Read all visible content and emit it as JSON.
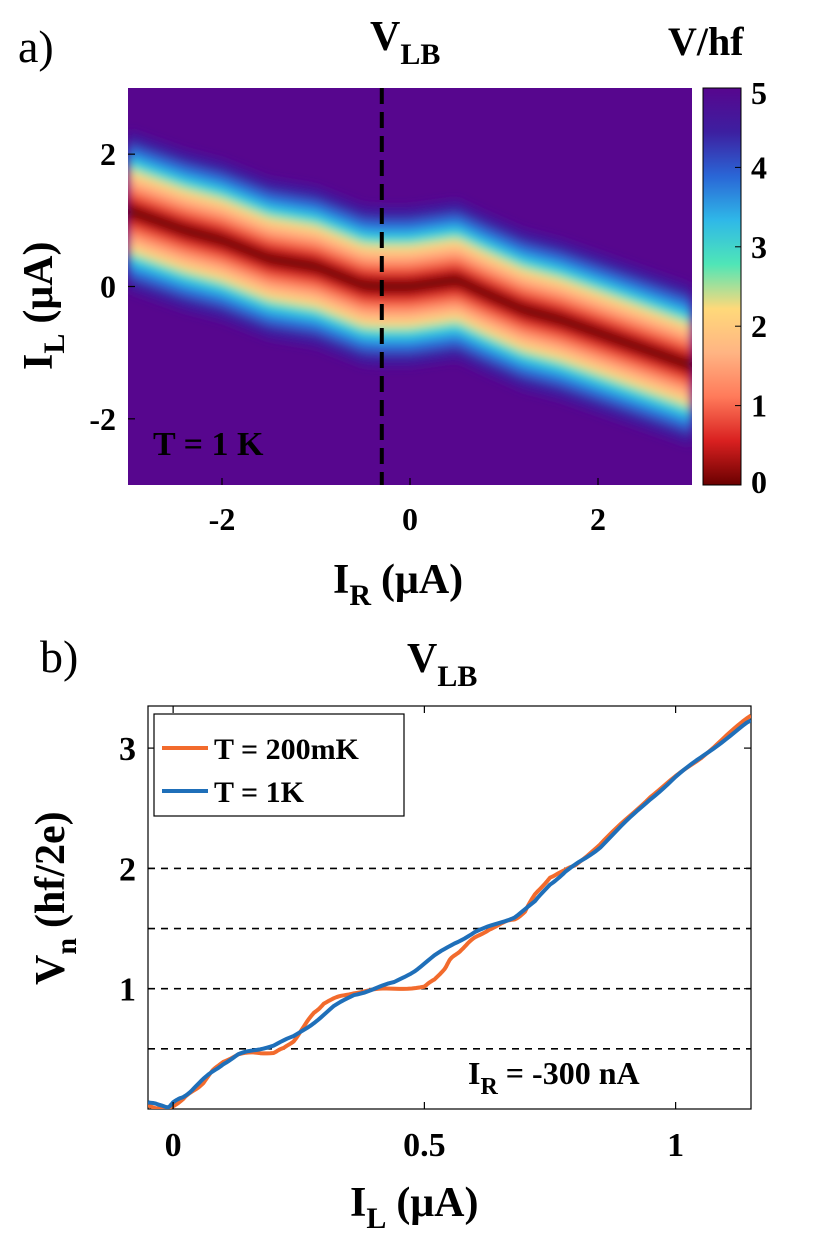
{
  "chart_data": [
    {
      "type": "heatmap",
      "panel_label": "a)",
      "title": "V",
      "title_sub": "LB",
      "xlabel": "I",
      "xlabel_sub": "R",
      "xlabel_unit": "(μA)",
      "ylabel": "I",
      "ylabel_sub": "L",
      "ylabel_unit": "(μA)",
      "xlim": [
        -3,
        3
      ],
      "ylim": [
        -3,
        3
      ],
      "xticks": [
        -2,
        0,
        2
      ],
      "yticks": [
        -2,
        0,
        2
      ],
      "colorbar": {
        "label": "V/hf",
        "min": 0,
        "max": 5,
        "ticks": [
          0,
          1,
          2,
          3,
          4,
          5
        ]
      },
      "annotation": "T = 1 K",
      "cut_line_x": -0.3,
      "ridge": [
        [
          -3,
          1.15
        ],
        [
          -2.4,
          0.85
        ],
        [
          -2.0,
          0.7
        ],
        [
          -1.5,
          0.42
        ],
        [
          -1.0,
          0.3
        ],
        [
          -0.5,
          0.02
        ],
        [
          -0.3,
          0.0
        ],
        [
          0.0,
          0.0
        ],
        [
          0.5,
          0.1
        ],
        [
          0.8,
          -0.1
        ],
        [
          1.2,
          -0.35
        ],
        [
          1.6,
          -0.5
        ],
        [
          2.0,
          -0.7
        ],
        [
          2.5,
          -0.95
        ],
        [
          3.0,
          -1.2
        ]
      ],
      "colormap": [
        "#6a0000",
        "#d92020",
        "#ff7a5a",
        "#ffb483",
        "#ffd97a",
        "#4fe6b7",
        "#2fb8e8",
        "#2a66d6",
        "#3d1fa0",
        "#57068e"
      ]
    },
    {
      "type": "line",
      "panel_label": "b)",
      "title": "V",
      "title_sub": "LB",
      "xlabel": "I",
      "xlabel_sub": "L",
      "xlabel_unit": "(μA)",
      "ylabel": "V",
      "ylabel_sub": "n",
      "ylabel_unit": "(hf/2e)",
      "xlim": [
        -0.05,
        1.15
      ],
      "ylim": [
        0,
        3.35
      ],
      "xticks": [
        0,
        0.5,
        1
      ],
      "yticks": [
        1,
        2,
        3
      ],
      "reference_lines_y": [
        0.5,
        1,
        1.5,
        2
      ],
      "legend_position": "top-left",
      "annotation": {
        "main": "I",
        "sub": "R",
        "rest": " = -300 nA"
      },
      "series": [
        {
          "name": "T = 200mK",
          "color": "#f26b2d",
          "x": [
            -0.05,
            -0.03,
            -0.01,
            0.0,
            0.02,
            0.04,
            0.06,
            0.08,
            0.1,
            0.13,
            0.16,
            0.2,
            0.22,
            0.24,
            0.26,
            0.28,
            0.3,
            0.33,
            0.36,
            0.4,
            0.45,
            0.5,
            0.52,
            0.54,
            0.55,
            0.56,
            0.58,
            0.6,
            0.63,
            0.66,
            0.68,
            0.7,
            0.72,
            0.75,
            0.78,
            0.8,
            0.85,
            0.9,
            0.95,
            1.0,
            1.05,
            1.1,
            1.15
          ],
          "y": [
            0.03,
            0.01,
            0.0,
            0.03,
            0.08,
            0.15,
            0.22,
            0.32,
            0.4,
            0.45,
            0.47,
            0.47,
            0.5,
            0.57,
            0.68,
            0.8,
            0.88,
            0.93,
            0.97,
            0.99,
            1.0,
            1.02,
            1.07,
            1.17,
            1.23,
            1.28,
            1.35,
            1.42,
            1.5,
            1.55,
            1.58,
            1.64,
            1.78,
            1.93,
            1.98,
            2.03,
            2.2,
            2.4,
            2.6,
            2.76,
            2.92,
            3.1,
            3.27
          ]
        },
        {
          "name": "T = 1K",
          "color": "#1f6fb9",
          "x": [
            -0.05,
            -0.03,
            -0.01,
            0.0,
            0.02,
            0.04,
            0.07,
            0.1,
            0.13,
            0.16,
            0.2,
            0.24,
            0.28,
            0.32,
            0.36,
            0.4,
            0.44,
            0.48,
            0.52,
            0.56,
            0.6,
            0.64,
            0.68,
            0.72,
            0.75,
            0.78,
            0.82,
            0.85,
            0.9,
            0.95,
            1.0,
            1.05,
            1.1,
            1.15
          ],
          "y": [
            0.06,
            0.03,
            0.02,
            0.05,
            0.1,
            0.17,
            0.28,
            0.38,
            0.45,
            0.49,
            0.53,
            0.6,
            0.72,
            0.85,
            0.95,
            1.0,
            1.05,
            1.15,
            1.27,
            1.38,
            1.47,
            1.53,
            1.6,
            1.72,
            1.87,
            1.97,
            2.08,
            2.18,
            2.38,
            2.58,
            2.76,
            2.92,
            3.08,
            3.23
          ]
        }
      ]
    }
  ]
}
